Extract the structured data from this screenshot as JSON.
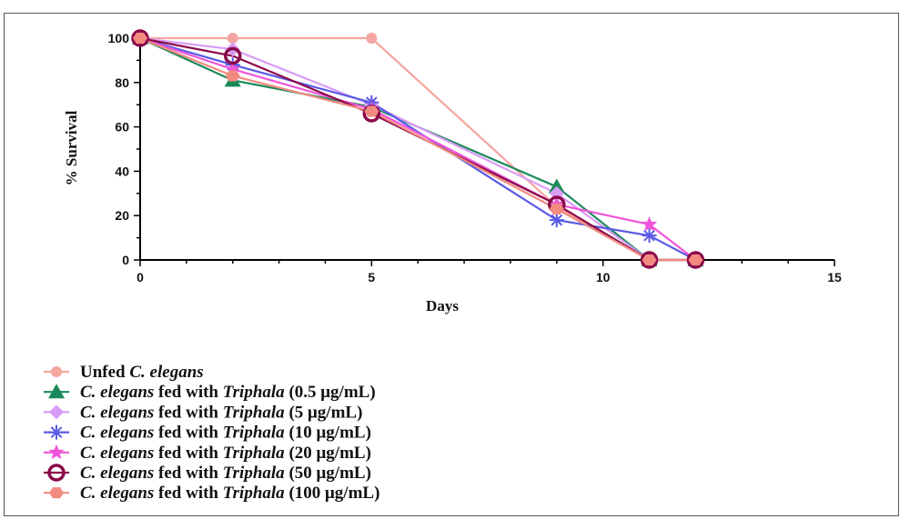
{
  "chart_data": {
    "type": "line",
    "xlabel": "Days",
    "ylabel": "% Survival",
    "xlim": [
      0,
      15
    ],
    "ylim": [
      0,
      100
    ],
    "x_ticks": [
      0,
      5,
      10,
      15
    ],
    "y_ticks": [
      0,
      20,
      40,
      60,
      80,
      100
    ],
    "grid": false,
    "legend_position": "bottom-left",
    "series": [
      {
        "name": "Unfed C. elegans",
        "name_parts": [
          [
            "Unfed ",
            false
          ],
          [
            "C. elegans",
            true
          ]
        ],
        "color": "#f4a6a0",
        "marker": "circle",
        "x": [
          0,
          2,
          5,
          9,
          11,
          12
        ],
        "y": [
          100,
          100,
          100,
          24,
          0,
          0
        ]
      },
      {
        "name": "C. elegans fed with Triphala (0.5 μg/mL)",
        "name_parts": [
          [
            "C. elegans",
            true
          ],
          [
            " fed with ",
            false
          ],
          [
            "Triphala",
            true
          ],
          [
            " (0.5 μg/mL)",
            false
          ]
        ],
        "color": "#1b8a5a",
        "marker": "triangle",
        "x": [
          0,
          2,
          5,
          9,
          11,
          12
        ],
        "y": [
          100,
          81,
          69,
          33,
          0,
          0
        ]
      },
      {
        "name": "C. elegans fed with Triphala (5 μg/mL)",
        "name_parts": [
          [
            "C. elegans",
            true
          ],
          [
            " fed with ",
            false
          ],
          [
            "Triphala",
            true
          ],
          [
            " (5 μg/mL)",
            false
          ]
        ],
        "color": "#d89cf5",
        "marker": "diamond",
        "x": [
          0,
          2,
          5,
          9,
          11,
          12
        ],
        "y": [
          100,
          95,
          70,
          30,
          0,
          0
        ]
      },
      {
        "name": "C. elegans fed with Triphala (10 μg/mL)",
        "name_parts": [
          [
            "C. elegans",
            true
          ],
          [
            " fed with ",
            false
          ],
          [
            "Triphala",
            true
          ],
          [
            " (10 μg/mL)",
            false
          ]
        ],
        "color": "#5a5ae6",
        "marker": "asterisk",
        "x": [
          0,
          2,
          5,
          9,
          11,
          12
        ],
        "y": [
          100,
          88,
          71,
          18,
          11,
          0
        ]
      },
      {
        "name": "C. elegans fed with Triphala (20 μg/mL)",
        "name_parts": [
          [
            "C. elegans",
            true
          ],
          [
            " fed with ",
            false
          ],
          [
            "Triphala",
            true
          ],
          [
            " (20 μg/mL)",
            false
          ]
        ],
        "color": "#f055d8",
        "marker": "star",
        "x": [
          0,
          2,
          5,
          9,
          11,
          12
        ],
        "y": [
          100,
          86,
          68,
          25,
          16,
          0
        ]
      },
      {
        "name": "C. elegans fed with Triphala (50 μg/mL)",
        "name_parts": [
          [
            "C. elegans",
            true
          ],
          [
            " fed with ",
            false
          ],
          [
            "Triphala",
            true
          ],
          [
            " (50 μg/mL)",
            false
          ]
        ],
        "color": "#8b0a4a",
        "marker": "ring",
        "x": [
          0,
          2,
          5,
          9,
          11,
          12
        ],
        "y": [
          100,
          92,
          66,
          25,
          0,
          0
        ]
      },
      {
        "name": "C. elegans fed with Triphala (100 μg/mL)",
        "name_parts": [
          [
            "C. elegans",
            true
          ],
          [
            " fed with ",
            false
          ],
          [
            "Triphala",
            true
          ],
          [
            " (100 μg/mL)",
            false
          ]
        ],
        "color": "#f28a80",
        "marker": "hexagon",
        "x": [
          0,
          2,
          5,
          9,
          11,
          12
        ],
        "y": [
          100,
          83,
          67,
          23,
          0,
          0
        ]
      }
    ]
  }
}
